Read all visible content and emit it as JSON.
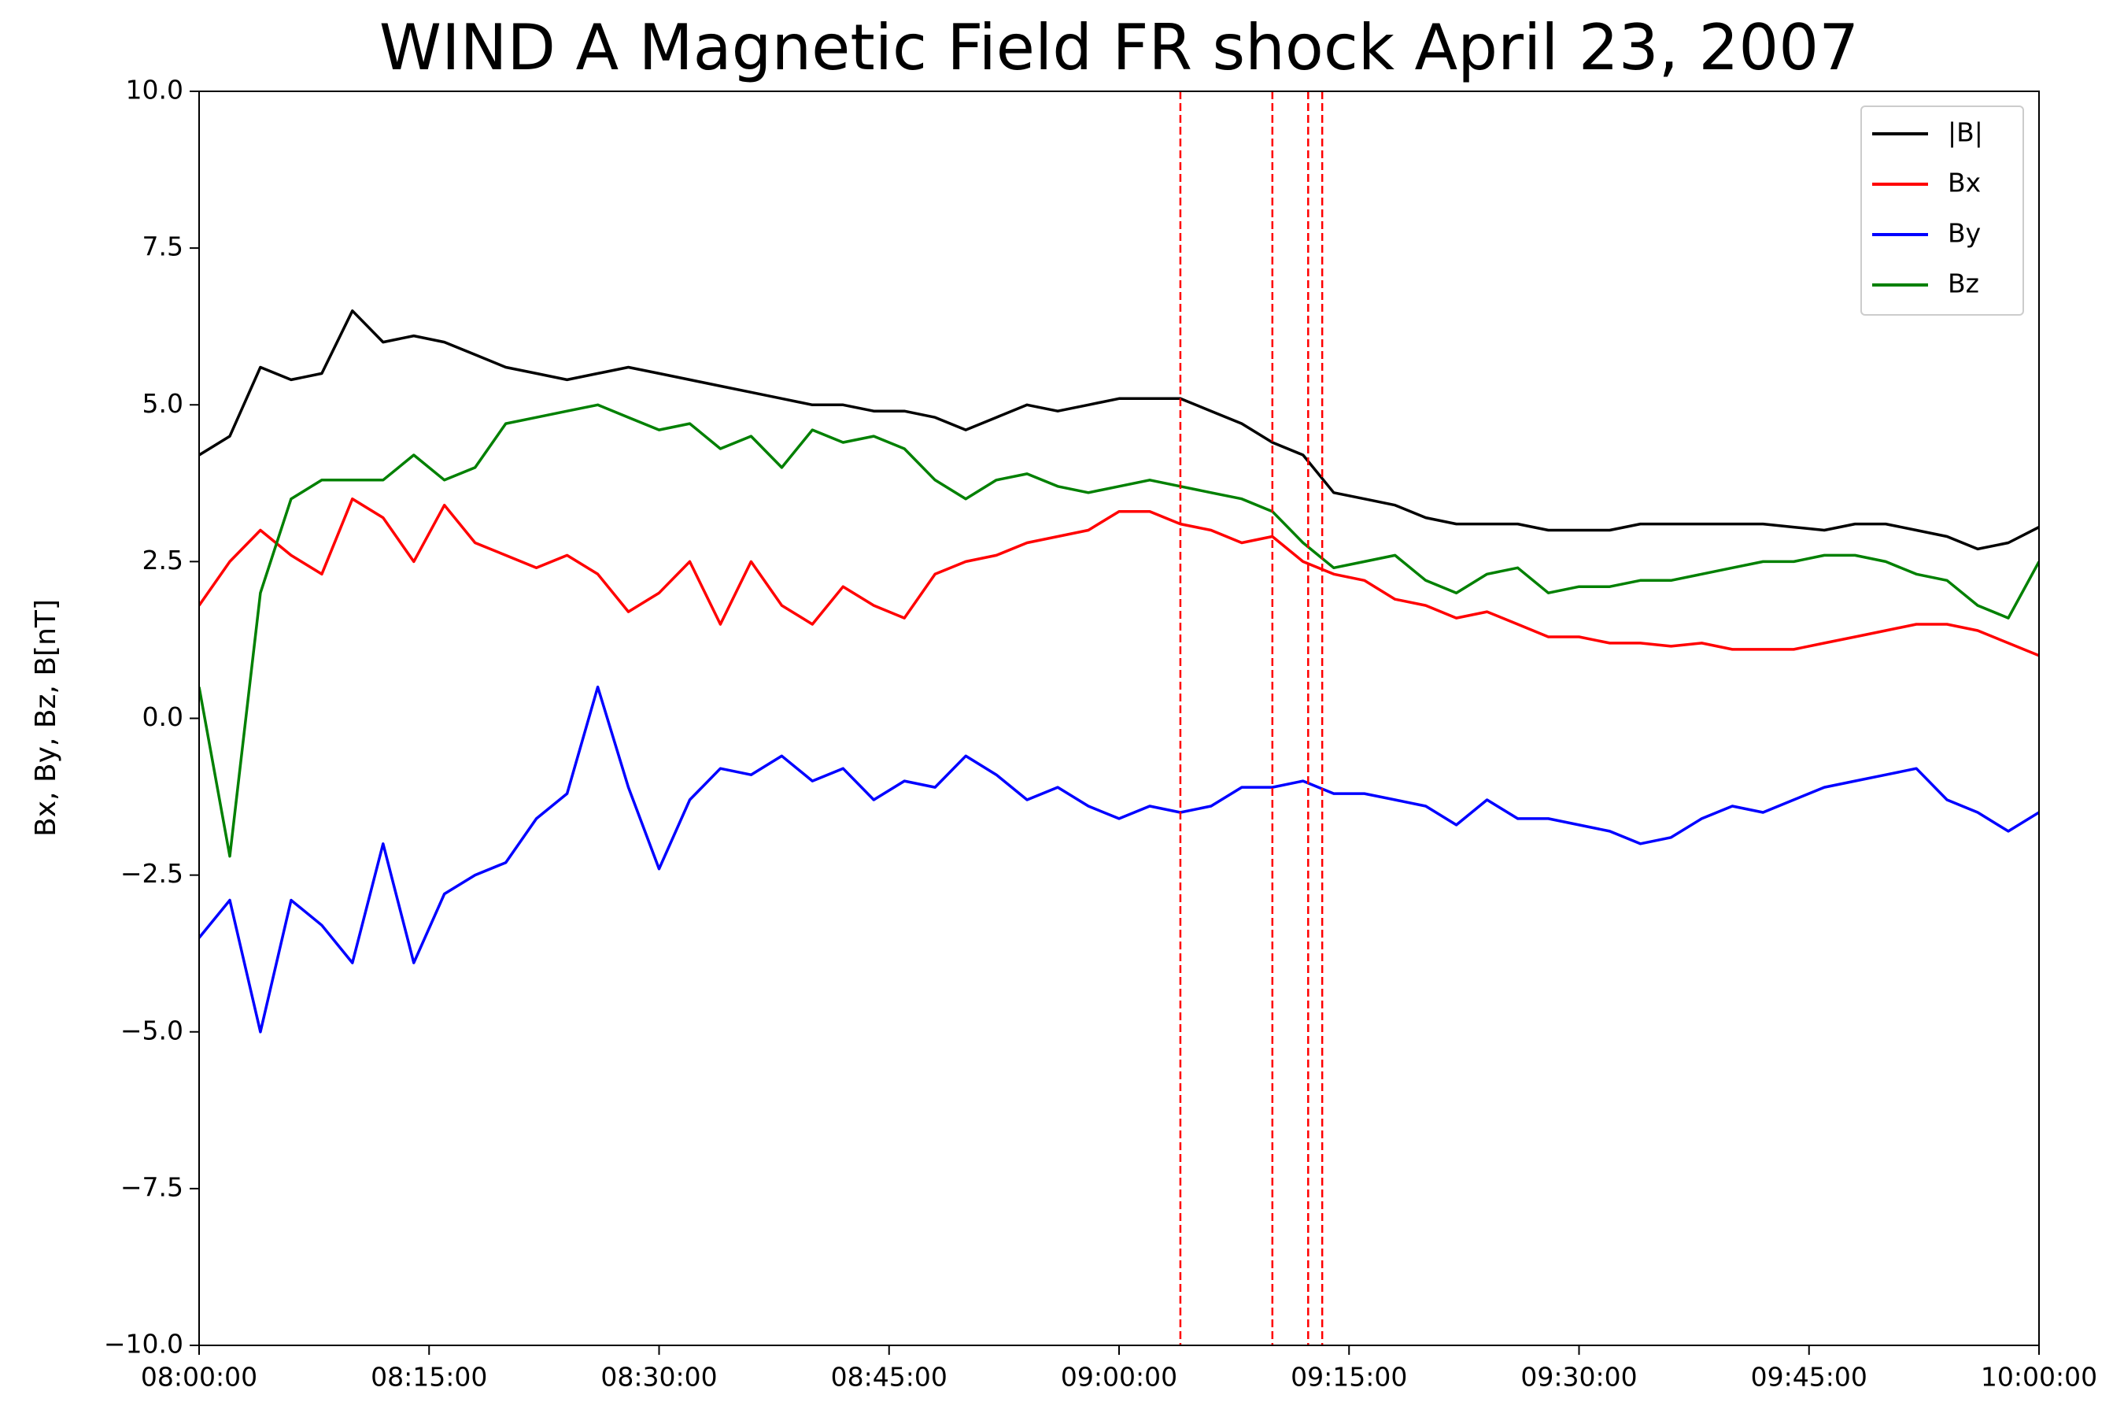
{
  "chart_data": {
    "type": "line",
    "title": "WIND A Magnetic Field FR shock April 23, 2007",
    "ylabel": "Bx, By, Bz, B[nT]",
    "x": [
      "08:00:00",
      "08:02:00",
      "08:04:00",
      "08:06:00",
      "08:08:00",
      "08:10:00",
      "08:12:00",
      "08:14:00",
      "08:16:00",
      "08:18:00",
      "08:20:00",
      "08:22:00",
      "08:24:00",
      "08:26:00",
      "08:28:00",
      "08:30:00",
      "08:32:00",
      "08:34:00",
      "08:36:00",
      "08:38:00",
      "08:40:00",
      "08:42:00",
      "08:44:00",
      "08:46:00",
      "08:48:00",
      "08:50:00",
      "08:52:00",
      "08:54:00",
      "08:56:00",
      "08:58:00",
      "09:00:00",
      "09:02:00",
      "09:04:00",
      "09:06:00",
      "09:08:00",
      "09:10:00",
      "09:12:00",
      "09:14:00",
      "09:16:00",
      "09:18:00",
      "09:20:00",
      "09:22:00",
      "09:24:00",
      "09:26:00",
      "09:28:00",
      "09:30:00",
      "09:32:00",
      "09:34:00",
      "09:36:00",
      "09:38:00",
      "09:40:00",
      "09:42:00",
      "09:44:00",
      "09:46:00",
      "09:48:00",
      "09:50:00",
      "09:52:00",
      "09:54:00",
      "09:56:00",
      "09:58:00",
      "10:00:00"
    ],
    "series": [
      {
        "name": "|B|",
        "color": "#000000",
        "values": [
          4.2,
          4.5,
          5.6,
          5.4,
          5.5,
          6.5,
          6.0,
          6.1,
          6.0,
          5.8,
          5.6,
          5.5,
          5.4,
          5.5,
          5.6,
          5.5,
          5.4,
          5.3,
          5.2,
          5.1,
          5.0,
          5.0,
          4.9,
          4.9,
          4.8,
          4.6,
          4.8,
          5.0,
          4.9,
          5.0,
          5.1,
          5.1,
          5.1,
          4.9,
          4.7,
          4.4,
          4.2,
          3.6,
          3.5,
          3.4,
          3.2,
          3.1,
          3.1,
          3.1,
          3.0,
          3.0,
          3.0,
          3.1,
          3.1,
          3.1,
          3.1,
          3.1,
          3.05,
          3.0,
          3.1,
          3.1,
          3.0,
          2.9,
          2.7,
          2.8,
          3.05
        ]
      },
      {
        "name": "Bx",
        "color": "#ff0000",
        "values": [
          1.8,
          2.5,
          3.0,
          2.6,
          2.3,
          3.5,
          3.2,
          2.5,
          3.4,
          2.8,
          2.6,
          2.4,
          2.6,
          2.3,
          1.7,
          2.0,
          2.5,
          1.5,
          2.5,
          1.8,
          1.5,
          2.1,
          1.8,
          1.6,
          2.3,
          2.5,
          2.6,
          2.8,
          2.9,
          3.0,
          3.3,
          3.3,
          3.1,
          3.0,
          2.8,
          2.9,
          2.5,
          2.3,
          2.2,
          1.9,
          1.8,
          1.6,
          1.7,
          1.5,
          1.3,
          1.3,
          1.2,
          1.2,
          1.15,
          1.2,
          1.1,
          1.1,
          1.1,
          1.2,
          1.3,
          1.4,
          1.5,
          1.5,
          1.4,
          1.2,
          1.0
        ]
      },
      {
        "name": "By",
        "color": "#0000ff",
        "values": [
          -3.5,
          -2.9,
          -5.0,
          -2.9,
          -3.3,
          -3.9,
          -2.0,
          -3.9,
          -2.8,
          -2.5,
          -2.3,
          -1.6,
          -1.2,
          0.5,
          -1.1,
          -2.4,
          -1.3,
          -0.8,
          -0.9,
          -0.6,
          -1.0,
          -0.8,
          -1.3,
          -1.0,
          -1.1,
          -0.6,
          -0.9,
          -1.3,
          -1.1,
          -1.4,
          -1.6,
          -1.4,
          -1.5,
          -1.4,
          -1.1,
          -1.1,
          -1.0,
          -1.2,
          -1.2,
          -1.3,
          -1.4,
          -1.7,
          -1.3,
          -1.6,
          -1.6,
          -1.7,
          -1.8,
          -2.0,
          -1.9,
          -1.6,
          -1.4,
          -1.5,
          -1.3,
          -1.1,
          -1.0,
          -0.9,
          -0.8,
          -1.3,
          -1.5,
          -1.8,
          -1.5
        ]
      },
      {
        "name": "Bz",
        "color": "#008000",
        "values": [
          0.5,
          -2.2,
          2.0,
          3.5,
          3.8,
          3.8,
          3.8,
          4.2,
          3.8,
          4.0,
          4.7,
          4.8,
          4.9,
          5.0,
          4.8,
          4.6,
          4.7,
          4.3,
          4.5,
          4.0,
          4.6,
          4.4,
          4.5,
          4.3,
          3.8,
          3.5,
          3.8,
          3.9,
          3.7,
          3.6,
          3.7,
          3.8,
          3.7,
          3.6,
          3.5,
          3.3,
          2.8,
          2.4,
          2.5,
          2.6,
          2.2,
          2.0,
          2.3,
          2.4,
          2.0,
          2.1,
          2.1,
          2.2,
          2.2,
          2.3,
          2.4,
          2.5,
          2.5,
          2.6,
          2.6,
          2.5,
          2.3,
          2.2,
          1.8,
          1.6,
          2.5
        ]
      }
    ],
    "vlines": [
      "09:04:00",
      "09:10:00",
      "09:12:20",
      "09:13:15"
    ],
    "vline_color": "#ff0000",
    "xlim": [
      "08:00:00",
      "10:00:00"
    ],
    "xticks": [
      "08:00:00",
      "08:15:00",
      "08:30:00",
      "08:45:00",
      "09:00:00",
      "09:15:00",
      "09:30:00",
      "09:45:00",
      "10:00:00"
    ],
    "ylim": [
      -10,
      10
    ],
    "yticks": [
      {
        "value": -10,
        "label": "−10.0"
      },
      {
        "value": -7.5,
        "label": "−7.5"
      },
      {
        "value": -5,
        "label": "−5.0"
      },
      {
        "value": -2.5,
        "label": "−2.5"
      },
      {
        "value": 0,
        "label": "0.0"
      },
      {
        "value": 2.5,
        "label": "2.5"
      },
      {
        "value": 5,
        "label": "5.0"
      },
      {
        "value": 7.5,
        "label": "7.5"
      },
      {
        "value": 10,
        "label": "10.0"
      }
    ],
    "legend": "upper right"
  }
}
